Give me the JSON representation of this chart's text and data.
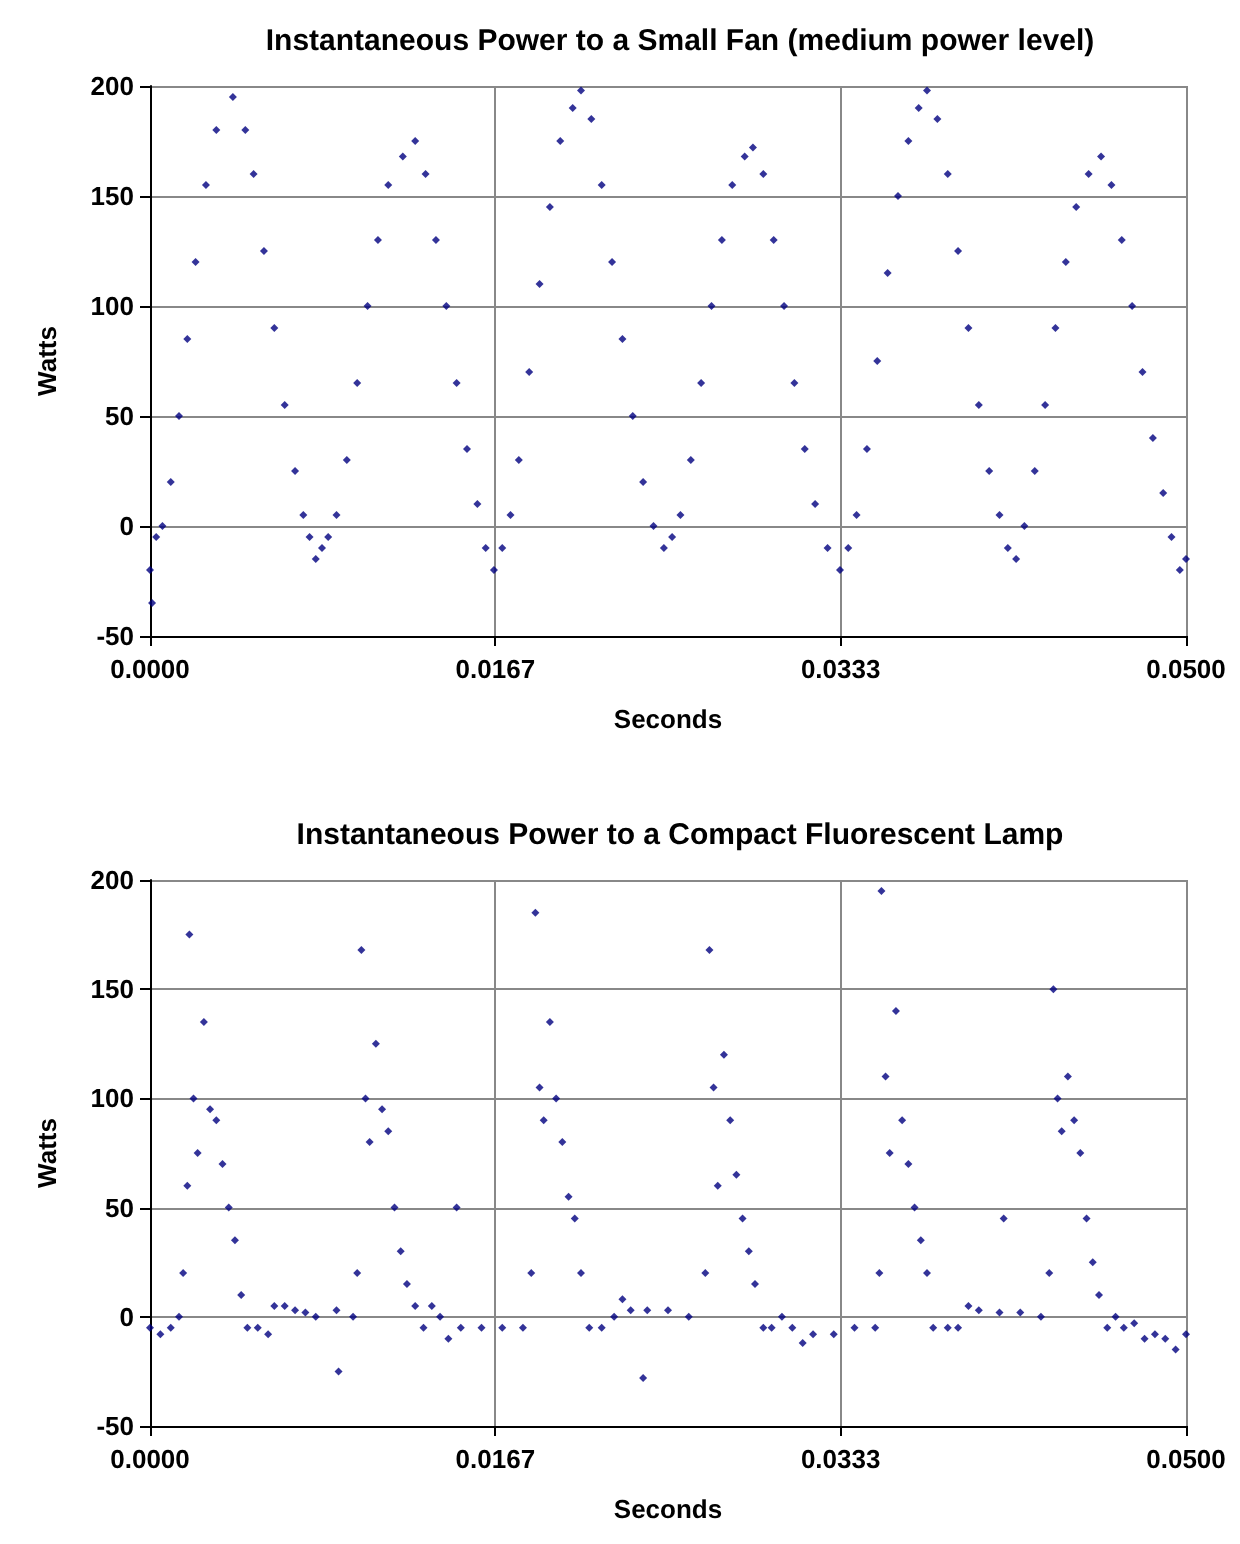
{
  "chart_data": [
    {
      "type": "scatter",
      "title": "Instantaneous Power to a Small Fan (medium power level)",
      "xlabel": "Seconds",
      "ylabel": "Watts",
      "xlim": [
        0,
        0.05
      ],
      "xticks": [
        {
          "value": 0,
          "label": "0.0000"
        },
        {
          "value": 0.016667,
          "label": "0.0167"
        },
        {
          "value": 0.033333,
          "label": "0.0333"
        },
        {
          "value": 0.05,
          "label": "0.0500"
        }
      ],
      "ylim": [
        -50,
        200
      ],
      "yticks": [
        -50,
        0,
        50,
        100,
        150,
        200
      ],
      "grid": true,
      "marker": "diamond",
      "series": [
        {
          "color": "#000080",
          "x": [
            0,
            0.0001,
            0.0003,
            0.0006,
            0.001,
            0.0014,
            0.0018,
            0.0022,
            0.0027,
            0.0032,
            0.004,
            0.0046,
            0.005,
            0.0055,
            0.006,
            0.0065,
            0.007,
            0.0074,
            0.0077,
            0.008,
            0.0083,
            0.0086,
            0.009,
            0.0095,
            0.01,
            0.0105,
            0.011,
            0.0115,
            0.0122,
            0.0128,
            0.0133,
            0.0138,
            0.0143,
            0.0148,
            0.0153,
            0.0158,
            0.0162,
            0.0166,
            0.017,
            0.0174,
            0.0178,
            0.0183,
            0.0188,
            0.0193,
            0.0198,
            0.0204,
            0.0208,
            0.0213,
            0.0218,
            0.0223,
            0.0228,
            0.0233,
            0.0238,
            0.0243,
            0.0248,
            0.0252,
            0.0256,
            0.0261,
            0.0266,
            0.0271,
            0.0276,
            0.0281,
            0.0287,
            0.0291,
            0.0296,
            0.0301,
            0.0306,
            0.0311,
            0.0316,
            0.0321,
            0.0327,
            0.0333,
            0.0337,
            0.0341,
            0.0346,
            0.0351,
            0.0356,
            0.0361,
            0.0366,
            0.0371,
            0.0375,
            0.038,
            0.0385,
            0.039,
            0.0395,
            0.04,
            0.0405,
            0.041,
            0.0414,
            0.0418,
            0.0422,
            0.0427,
            0.0432,
            0.0437,
            0.0442,
            0.0447,
            0.0453,
            0.0459,
            0.0464,
            0.0469,
            0.0474,
            0.0479,
            0.0484,
            0.0489,
            0.0493,
            0.0497,
            0.05
          ],
          "values": [
            -20,
            -35,
            -5,
            0,
            20,
            50,
            85,
            120,
            155,
            180,
            195,
            180,
            160,
            125,
            90,
            55,
            25,
            5,
            -5,
            -15,
            -10,
            -5,
            5,
            30,
            65,
            100,
            130,
            155,
            168,
            175,
            160,
            130,
            100,
            65,
            35,
            10,
            -10,
            -20,
            -10,
            5,
            30,
            70,
            110,
            145,
            175,
            190,
            198,
            185,
            155,
            120,
            85,
            50,
            20,
            0,
            -10,
            -5,
            5,
            30,
            65,
            100,
            130,
            155,
            168,
            172,
            160,
            130,
            100,
            65,
            35,
            10,
            -10,
            -20,
            -10,
            5,
            35,
            75,
            115,
            150,
            175,
            190,
            198,
            185,
            160,
            125,
            90,
            55,
            25,
            5,
            -10,
            -15,
            0,
            25,
            55,
            90,
            120,
            145,
            160,
            168,
            155,
            130,
            100,
            70,
            40,
            15,
            -5,
            -20,
            -15
          ]
        }
      ]
    },
    {
      "type": "scatter",
      "title": "Instantaneous Power to a Compact Fluorescent Lamp",
      "xlabel": "Seconds",
      "ylabel": "Watts",
      "xlim": [
        0,
        0.05
      ],
      "xticks": [
        {
          "value": 0,
          "label": "0.0000"
        },
        {
          "value": 0.016667,
          "label": "0.0167"
        },
        {
          "value": 0.033333,
          "label": "0.0333"
        },
        {
          "value": 0.05,
          "label": "0.0500"
        }
      ],
      "ylim": [
        -50,
        200
      ],
      "yticks": [
        -50,
        0,
        50,
        100,
        150,
        200
      ],
      "grid": true,
      "marker": "diamond",
      "series": [
        {
          "color": "#000080",
          "x": [
            0,
            0.0005,
            0.001,
            0.0014,
            0.0016,
            0.0018,
            0.0019,
            0.0021,
            0.0023,
            0.0026,
            0.0029,
            0.0032,
            0.0035,
            0.0038,
            0.0041,
            0.0044,
            0.0047,
            0.0052,
            0.0057,
            0.006,
            0.0065,
            0.007,
            0.0075,
            0.008,
            0.009,
            0.0091,
            0.0098,
            0.01,
            0.0102,
            0.0104,
            0.0106,
            0.0109,
            0.0112,
            0.0115,
            0.0118,
            0.0121,
            0.0124,
            0.0128,
            0.0132,
            0.0136,
            0.014,
            0.0144,
            0.0148,
            0.015,
            0.016,
            0.017,
            0.018,
            0.0184,
            0.0186,
            0.0188,
            0.019,
            0.0193,
            0.0196,
            0.0199,
            0.0202,
            0.0205,
            0.0208,
            0.0212,
            0.0218,
            0.0224,
            0.0228,
            0.0232,
            0.0238,
            0.024,
            0.025,
            0.026,
            0.0268,
            0.027,
            0.0272,
            0.0274,
            0.0277,
            0.028,
            0.0283,
            0.0286,
            0.0289,
            0.0292,
            0.0296,
            0.03,
            0.0305,
            0.031,
            0.0315,
            0.032,
            0.033,
            0.034,
            0.035,
            0.0352,
            0.0353,
            0.0355,
            0.0357,
            0.036,
            0.0363,
            0.0366,
            0.0369,
            0.0372,
            0.0375,
            0.0378,
            0.0385,
            0.039,
            0.0395,
            0.04,
            0.041,
            0.0412,
            0.042,
            0.043,
            0.0434,
            0.0436,
            0.0438,
            0.044,
            0.0443,
            0.0446,
            0.0449,
            0.0452,
            0.0455,
            0.0458,
            0.0462,
            0.0466,
            0.047,
            0.0475,
            0.048,
            0.0485,
            0.049,
            0.0495,
            0.05
          ],
          "values": [
            -5,
            -8,
            -5,
            0,
            20,
            60,
            175,
            100,
            75,
            135,
            95,
            90,
            70,
            50,
            35,
            10,
            -5,
            -5,
            -8,
            5,
            5,
            3,
            2,
            0,
            3,
            -25,
            0,
            20,
            168,
            100,
            80,
            125,
            95,
            85,
            50,
            30,
            15,
            5,
            -5,
            5,
            0,
            -10,
            50,
            -5,
            -5,
            -5,
            -5,
            20,
            185,
            105,
            90,
            135,
            100,
            80,
            55,
            45,
            20,
            -5,
            -5,
            0,
            8,
            3,
            -28,
            3,
            3,
            0,
            20,
            168,
            105,
            60,
            120,
            90,
            65,
            45,
            30,
            15,
            -5,
            -5,
            0,
            -5,
            -12,
            -8,
            -8,
            -5,
            -5,
            20,
            195,
            110,
            75,
            140,
            90,
            70,
            50,
            35,
            20,
            -5,
            -5,
            -5,
            5,
            3,
            2,
            45,
            2,
            0,
            20,
            150,
            100,
            85,
            110,
            90,
            75,
            45,
            25,
            10,
            -5,
            0,
            -5,
            -3,
            -10,
            -8,
            -10,
            -15,
            -8
          ]
        }
      ]
    }
  ]
}
